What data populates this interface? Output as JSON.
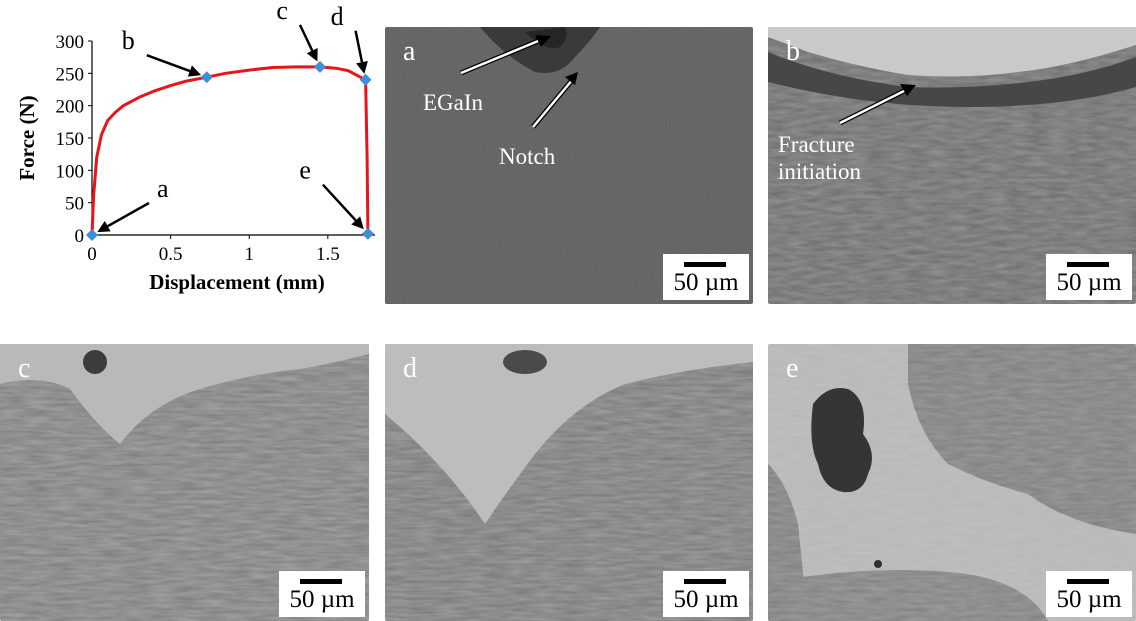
{
  "chart_data": {
    "type": "line",
    "xlabel": "Displacement (mm)",
    "ylabel": "Force (N)",
    "xlim": [
      0,
      1.8
    ],
    "ylim": [
      0,
      300
    ],
    "xticks": [
      0,
      0.5,
      1,
      1.5
    ],
    "yticks": [
      0,
      50,
      100,
      150,
      200,
      250,
      300
    ],
    "xtick_labels": [
      "0",
      "0.5",
      "1",
      "1.5"
    ],
    "ytick_labels": [
      "0",
      "50",
      "100",
      "150",
      "200",
      "250",
      "300"
    ],
    "grid": false,
    "series": [
      {
        "color": "#e8141b",
        "x": [
          0,
          0.01,
          0.03,
          0.06,
          0.1,
          0.15,
          0.2,
          0.3,
          0.4,
          0.5,
          0.6,
          0.73,
          0.85,
          1.0,
          1.15,
          1.3,
          1.45,
          1.55,
          1.63,
          1.7,
          1.74,
          1.75,
          1.755
        ],
        "y": [
          0,
          60,
          120,
          155,
          177,
          190,
          200,
          213,
          223,
          231,
          238,
          244,
          250,
          255,
          259,
          260,
          260,
          258,
          254,
          245,
          240,
          120,
          2
        ]
      }
    ],
    "markers": {
      "color": "#3e8fd6",
      "x": [
        0,
        0.73,
        1.45,
        1.74,
        1.755
      ],
      "y": [
        0,
        244,
        260,
        240,
        2
      ]
    },
    "annotations": [
      {
        "label": "a",
        "x": 0,
        "y": 0
      },
      {
        "label": "b",
        "x": 0.73,
        "y": 244
      },
      {
        "label": "c",
        "x": 1.45,
        "y": 260
      },
      {
        "label": "d",
        "x": 1.74,
        "y": 240
      },
      {
        "label": "e",
        "x": 1.755,
        "y": 2
      }
    ]
  },
  "panels": [
    {
      "letter": "a",
      "scale": "50 µm",
      "annotations": [
        "EGaIn",
        "Notch"
      ]
    },
    {
      "letter": "b",
      "scale": "50 µm",
      "annotations": [
        "Fracture\ninitiation"
      ]
    },
    {
      "letter": "c",
      "scale": "50 µm",
      "annotations": []
    },
    {
      "letter": "d",
      "scale": "50 µm",
      "annotations": []
    },
    {
      "letter": "e",
      "scale": "50 µm",
      "annotations": []
    }
  ]
}
